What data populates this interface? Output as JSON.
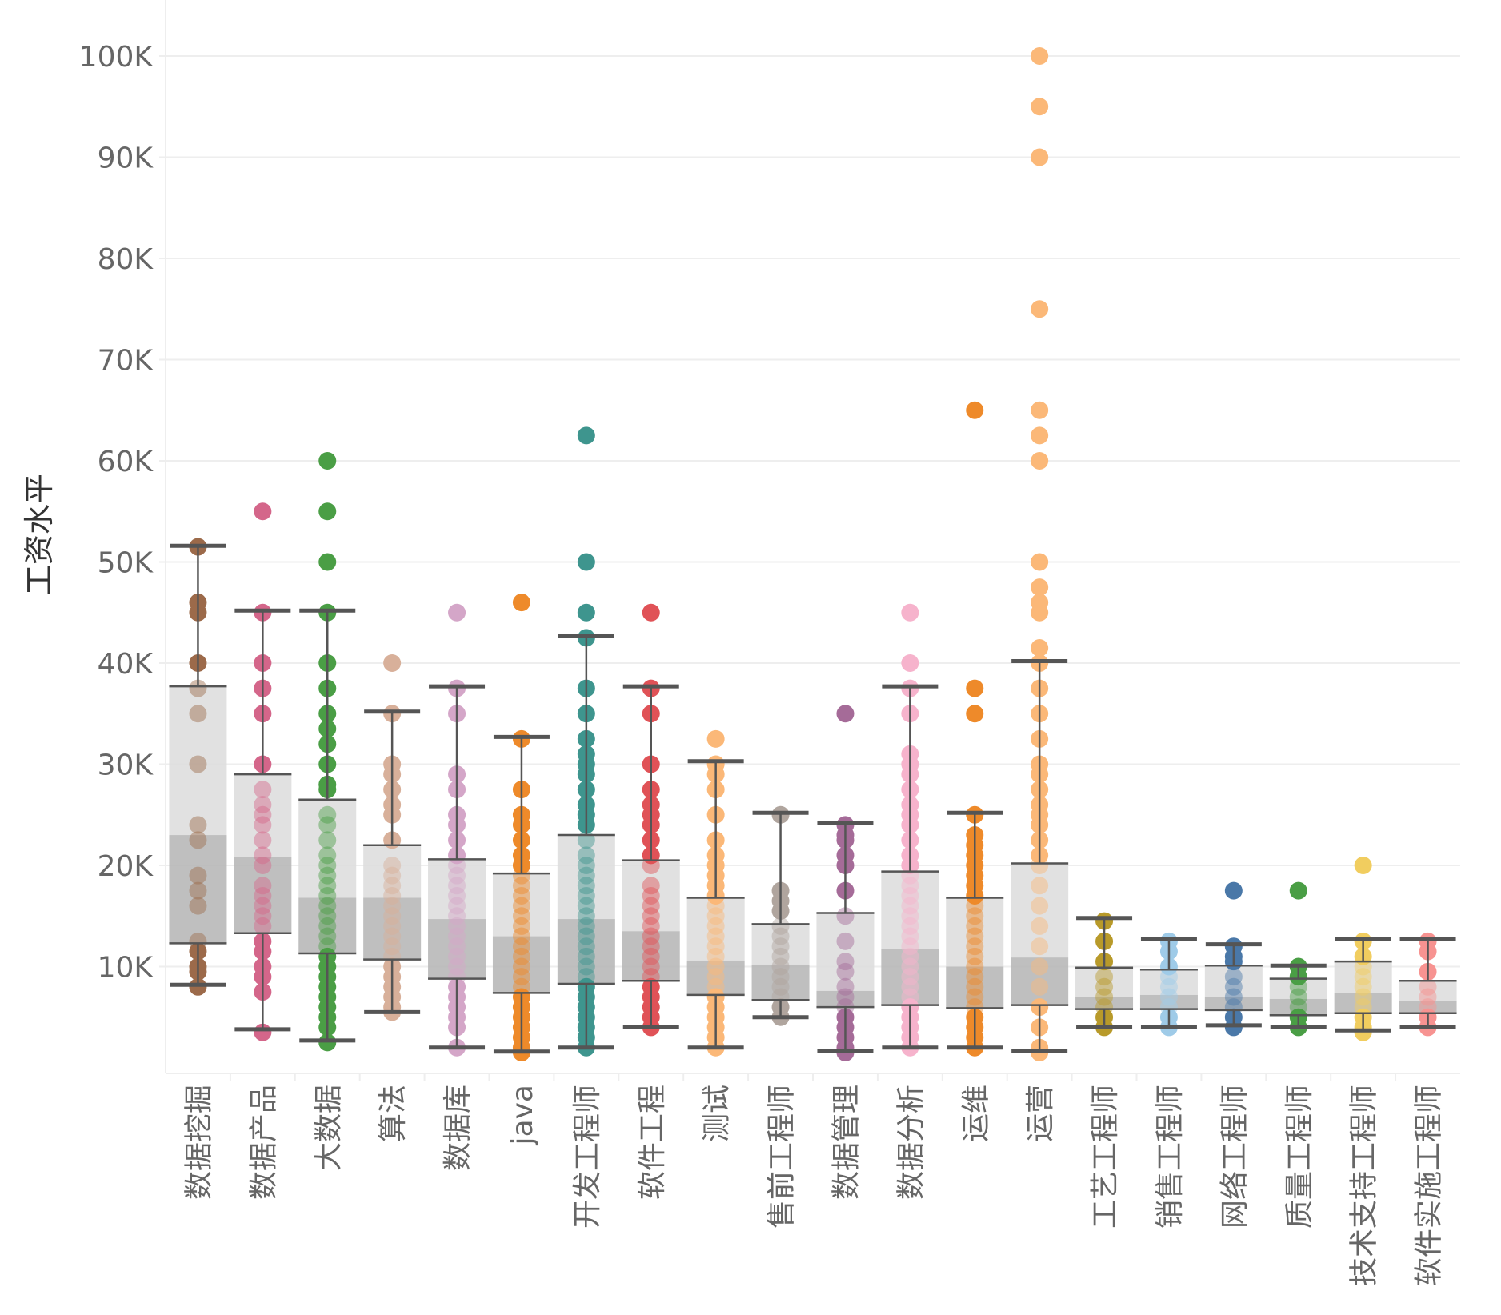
{
  "chart_data": {
    "type": "box",
    "title": "",
    "xlabel": "",
    "ylabel": "工资水平",
    "ylim": [
      1400,
      104000
    ],
    "y_ticks": [
      10000,
      20000,
      30000,
      40000,
      50000,
      60000,
      70000,
      80000,
      90000,
      100000
    ],
    "y_tick_labels": [
      "10K",
      "20K",
      "30K",
      "40K",
      "50K",
      "60K",
      "70K",
      "80K",
      "90K",
      "100K"
    ],
    "grid": true,
    "legend": "none",
    "categories": [
      "数据挖掘",
      "数据产品",
      "大数据",
      "算法",
      "数据库",
      "java",
      "开发工程师",
      "软件工程",
      "测试",
      "售前工程师",
      "数据管理",
      "数据分析",
      "运维",
      "运营",
      "工艺工程师",
      "销售工程师",
      "网络工程师",
      "质量工程师",
      "技术支持工程师",
      "软件实施工程师"
    ],
    "colors": [
      "#9c6a4a",
      "#d4668a",
      "#4a9e45",
      "#d8b09a",
      "#d4a6c8",
      "#ee8a2a",
      "#3e958e",
      "#e05257",
      "#fbb878",
      "#b0a59e",
      "#a56b98",
      "#f6b3cc",
      "#ee8a2a",
      "#fbb878",
      "#b89a2a",
      "#9fcbe8",
      "#4a78a8",
      "#4a9e45",
      "#f1cd5f",
      "#f79391"
    ],
    "boxes": [
      {
        "whisker_high": 51600,
        "q3": 37700,
        "median": 23000,
        "q1": 12300,
        "whisker_low": 8200
      },
      {
        "whisker_high": 45200,
        "q3": 29000,
        "median": 20800,
        "q1": 13300,
        "whisker_low": 3800
      },
      {
        "whisker_high": 45200,
        "q3": 26500,
        "median": 16800,
        "q1": 11300,
        "whisker_low": 2700
      },
      {
        "whisker_high": 35200,
        "q3": 22000,
        "median": 16800,
        "q1": 10700,
        "whisker_low": 5500
      },
      {
        "whisker_high": 37700,
        "q3": 20600,
        "median": 14700,
        "q1": 8800,
        "whisker_low": 2000
      },
      {
        "whisker_high": 32700,
        "q3": 19200,
        "median": 13000,
        "q1": 7400,
        "whisker_low": 1600
      },
      {
        "whisker_high": 42700,
        "q3": 23000,
        "median": 14700,
        "q1": 8300,
        "whisker_low": 2000
      },
      {
        "whisker_high": 37700,
        "q3": 20500,
        "median": 13500,
        "q1": 8600,
        "whisker_low": 4000
      },
      {
        "whisker_high": 30300,
        "q3": 16800,
        "median": 10600,
        "q1": 7200,
        "whisker_low": 2000
      },
      {
        "whisker_high": 25200,
        "q3": 14200,
        "median": 10200,
        "q1": 6700,
        "whisker_low": 5000
      },
      {
        "whisker_high": 24200,
        "q3": 15300,
        "median": 7600,
        "q1": 6000,
        "whisker_low": 1700
      },
      {
        "whisker_high": 37700,
        "q3": 19400,
        "median": 11700,
        "q1": 6200,
        "whisker_low": 2000
      },
      {
        "whisker_high": 25200,
        "q3": 16800,
        "median": 10000,
        "q1": 5900,
        "whisker_low": 2000
      },
      {
        "whisker_high": 40200,
        "q3": 20200,
        "median": 10900,
        "q1": 6200,
        "whisker_low": 1700
      },
      {
        "whisker_high": 14800,
        "q3": 9900,
        "median": 7000,
        "q1": 5800,
        "whisker_low": 4000
      },
      {
        "whisker_high": 12700,
        "q3": 9700,
        "median": 7200,
        "q1": 5800,
        "whisker_low": 4000
      },
      {
        "whisker_high": 12200,
        "q3": 10100,
        "median": 7000,
        "q1": 5700,
        "whisker_low": 4200
      },
      {
        "whisker_high": 10100,
        "q3": 8800,
        "median": 6800,
        "q1": 5200,
        "whisker_low": 4000
      },
      {
        "whisker_high": 12700,
        "q3": 10500,
        "median": 7400,
        "q1": 5400,
        "whisker_low": 3700
      },
      {
        "whisker_high": 12700,
        "q3": 8600,
        "median": 6600,
        "q1": 5400,
        "whisker_low": 4000
      }
    ],
    "points": [
      [
        51500,
        46000,
        45000,
        40000,
        37500,
        35000,
        30000,
        24000,
        22500,
        19000,
        17500,
        16000,
        12500,
        11500,
        10000,
        9500,
        8000
      ],
      [
        55000,
        45000,
        40000,
        37500,
        35000,
        30000,
        27500,
        26000,
        25000,
        24000,
        22500,
        21000,
        20000,
        18000,
        17000,
        16000,
        15000,
        14000,
        12500,
        11500,
        10000,
        9000,
        7500,
        3500
      ],
      [
        60000,
        55000,
        50000,
        45000,
        40000,
        37500,
        35000,
        33500,
        32000,
        30000,
        28000,
        27500,
        25000,
        24000,
        22500,
        21000,
        20000,
        19000,
        18000,
        17000,
        16000,
        15000,
        14000,
        13000,
        12000,
        11000,
        10000,
        9000,
        8000,
        7000,
        6000,
        5000,
        4000,
        2500
      ],
      [
        40000,
        35000,
        30000,
        29000,
        27500,
        26000,
        25000,
        22500,
        20000,
        19000,
        18000,
        17000,
        16000,
        15000,
        14000,
        13000,
        12000,
        11000,
        10000,
        9000,
        8000,
        7000,
        6000,
        5500
      ],
      [
        45000,
        37500,
        35000,
        29000,
        27500,
        25000,
        24000,
        22500,
        21000,
        20000,
        19000,
        18000,
        17000,
        16000,
        15000,
        14000,
        13000,
        12000,
        11000,
        10000,
        9000,
        8000,
        7000,
        6000,
        5000,
        4000,
        2000
      ],
      [
        46000,
        32500,
        27500,
        25000,
        24000,
        22500,
        21000,
        20000,
        19000,
        18000,
        17000,
        16000,
        15000,
        14000,
        13000,
        12000,
        11000,
        10000,
        9000,
        8000,
        7000,
        6000,
        5000,
        4000,
        3000,
        2000,
        1500
      ],
      [
        62500,
        50000,
        45000,
        42500,
        37500,
        35000,
        32500,
        31000,
        30000,
        29000,
        27500,
        26000,
        25000,
        24000,
        22500,
        21000,
        20000,
        19000,
        18000,
        17000,
        16000,
        15000,
        14000,
        13000,
        12000,
        11000,
        10000,
        9000,
        8000,
        7000,
        6000,
        5000,
        4000,
        3000,
        2000
      ],
      [
        45000,
        37500,
        35000,
        30000,
        27500,
        26000,
        25000,
        24000,
        22500,
        21000,
        20000,
        18000,
        17000,
        16000,
        15000,
        14000,
        13000,
        12000,
        11000,
        10000,
        9000,
        8000,
        7000,
        6000,
        5000,
        4000
      ],
      [
        32500,
        30000,
        29000,
        27500,
        25000,
        22500,
        21000,
        20000,
        19000,
        18000,
        17000,
        16000,
        15000,
        14000,
        13000,
        12000,
        11000,
        10000,
        9000,
        8000,
        7000,
        6000,
        5000,
        4000,
        3000,
        2000
      ],
      [
        25000,
        17500,
        16500,
        15500,
        14000,
        13000,
        12000,
        11000,
        10000,
        9000,
        8000,
        7000,
        6000,
        5000
      ],
      [
        35000,
        24000,
        23000,
        22500,
        21000,
        20000,
        17500,
        15000,
        12500,
        10500,
        9500,
        8000,
        7000,
        6000,
        5000,
        4000,
        3000,
        2000,
        1500
      ],
      [
        45000,
        40000,
        37500,
        35000,
        31000,
        30000,
        29000,
        27500,
        26000,
        25000,
        24000,
        22500,
        21000,
        20000,
        19000,
        18000,
        17000,
        16000,
        15000,
        14000,
        13000,
        12000,
        11000,
        10000,
        9000,
        8000,
        7000,
        6000,
        5000,
        4000,
        3000,
        2000
      ],
      [
        65000,
        37500,
        35000,
        25000,
        23000,
        22000,
        21000,
        20000,
        19000,
        18000,
        17000,
        16000,
        15000,
        14000,
        13000,
        12000,
        11000,
        10000,
        9000,
        8000,
        7000,
        6000,
        5000,
        4000,
        3000,
        2000
      ],
      [
        100000,
        95000,
        90000,
        75000,
        65000,
        62500,
        60000,
        50000,
        47500,
        46000,
        45000,
        41500,
        40000,
        37500,
        35000,
        32500,
        30000,
        29000,
        27500,
        26000,
        25000,
        24000,
        22500,
        21000,
        20000,
        18000,
        16000,
        14000,
        12000,
        10000,
        8000,
        6000,
        4000,
        2000,
        1500
      ],
      [
        14500,
        12500,
        10500,
        9000,
        8000,
        7000,
        6000,
        5000,
        4000
      ],
      [
        12500,
        11500,
        10000,
        9000,
        8000,
        7000,
        6000,
        5000,
        4000
      ],
      [
        17500,
        12000,
        11000,
        10500,
        9000,
        8000,
        7000,
        6000,
        5000,
        4000
      ],
      [
        17500,
        10000,
        9000,
        8000,
        7000,
        6000,
        5000,
        4000
      ],
      [
        20000,
        12500,
        11000,
        10000,
        9000,
        8000,
        7000,
        6000,
        5000,
        4000,
        3500
      ],
      [
        12500,
        11500,
        9500,
        8000,
        7000,
        6000,
        5000,
        4000
      ]
    ]
  }
}
